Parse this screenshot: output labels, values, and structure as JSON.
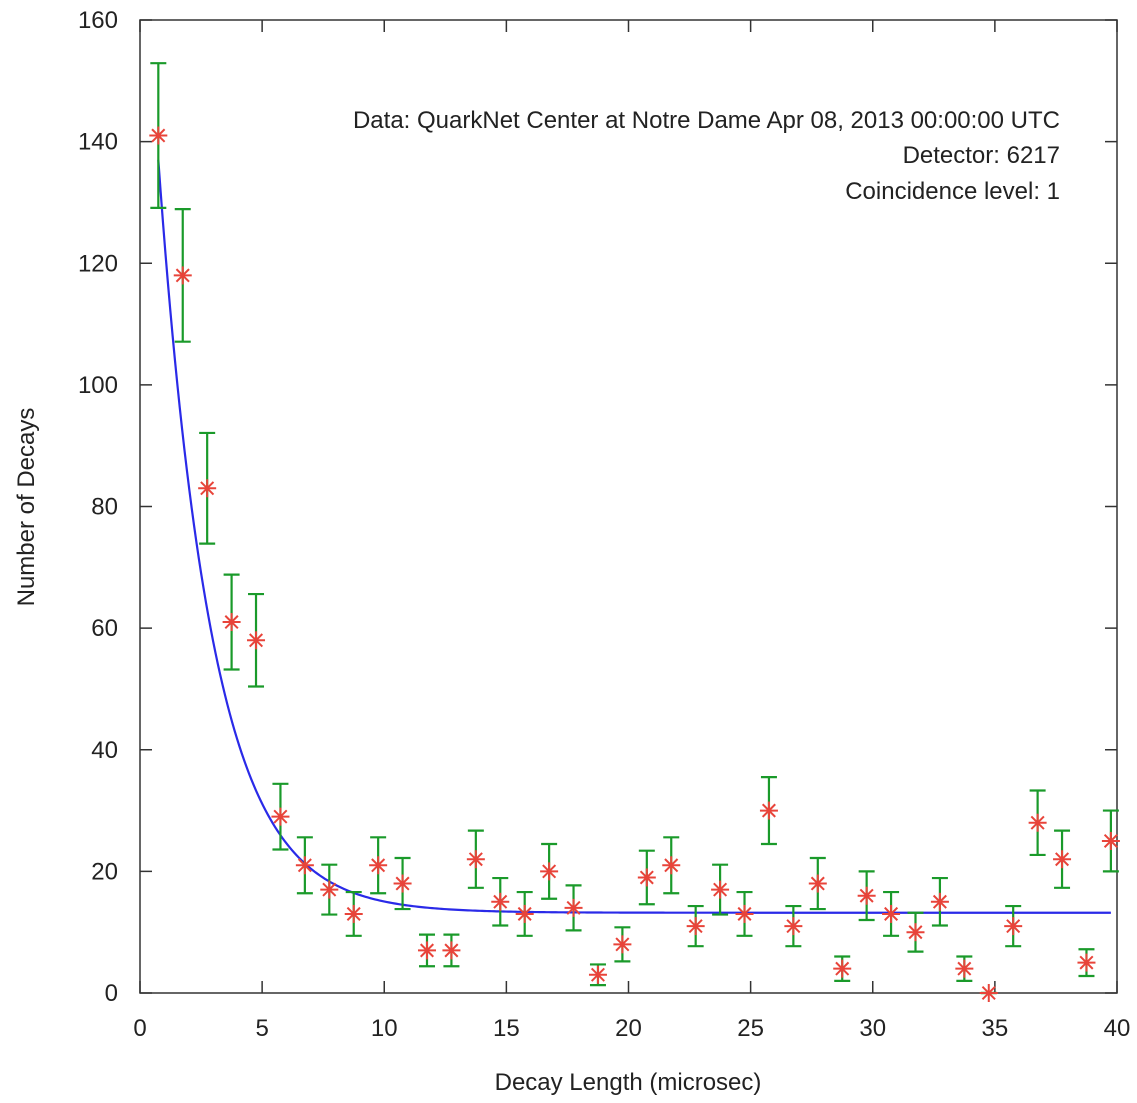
{
  "chart_data": {
    "type": "scatter",
    "title": "",
    "xlabel": "Decay Length (microsec)",
    "ylabel": "Number of Decays",
    "xlim": [
      0,
      40
    ],
    "ylim": [
      0,
      160
    ],
    "xticks": [
      0,
      5,
      10,
      15,
      20,
      25,
      30,
      35,
      40
    ],
    "yticks": [
      0,
      20,
      40,
      60,
      80,
      100,
      120,
      140,
      160
    ],
    "grid": false,
    "annotations": [
      "Data: QuarkNet Center at Notre Dame Apr 08, 2013 00:00:00 UTC",
      "Detector: 6217",
      "Coincidence level: 1"
    ],
    "series": [
      {
        "marker": "star",
        "marker_color": "#e8443a",
        "errorbar_color": "#1a9a2a",
        "x": [
          0.75,
          1.75,
          2.75,
          3.75,
          4.75,
          5.75,
          6.75,
          7.75,
          8.75,
          9.75,
          10.75,
          11.75,
          12.75,
          13.75,
          14.75,
          15.75,
          16.75,
          17.75,
          18.75,
          19.75,
          20.75,
          21.75,
          22.75,
          23.75,
          24.75,
          25.75,
          26.75,
          27.75,
          28.75,
          29.75,
          30.75,
          31.75,
          32.75,
          33.75,
          34.75,
          35.75,
          36.75,
          37.75,
          38.75,
          39.75
        ],
        "y": [
          141,
          118,
          83,
          61,
          58,
          29,
          21,
          17,
          13,
          21,
          18,
          7,
          7,
          22,
          15,
          13,
          20,
          14,
          3,
          8,
          19,
          21,
          11,
          17,
          13,
          30,
          11,
          18,
          4,
          16,
          13,
          10,
          15,
          4,
          0,
          11,
          28,
          22,
          5,
          25
        ],
        "yerr": [
          11.9,
          10.9,
          9.1,
          7.8,
          7.6,
          5.4,
          4.6,
          4.1,
          3.6,
          4.6,
          4.2,
          2.6,
          2.6,
          4.7,
          3.9,
          3.6,
          4.5,
          3.7,
          1.7,
          2.8,
          4.4,
          4.6,
          3.3,
          4.1,
          3.6,
          5.5,
          3.3,
          4.2,
          2.0,
          4.0,
          3.6,
          3.2,
          3.9,
          2.0,
          0.0,
          3.3,
          5.3,
          4.7,
          2.2,
          5.0
        ]
      },
      {
        "type": "line",
        "color": "#2a2ae8",
        "fit": {
          "model": "A*exp(-x/tau)+C",
          "A": 174.1,
          "tau": 2.2,
          "C": 13.2,
          "x_range": [
            0.75,
            39.75
          ]
        }
      }
    ]
  }
}
